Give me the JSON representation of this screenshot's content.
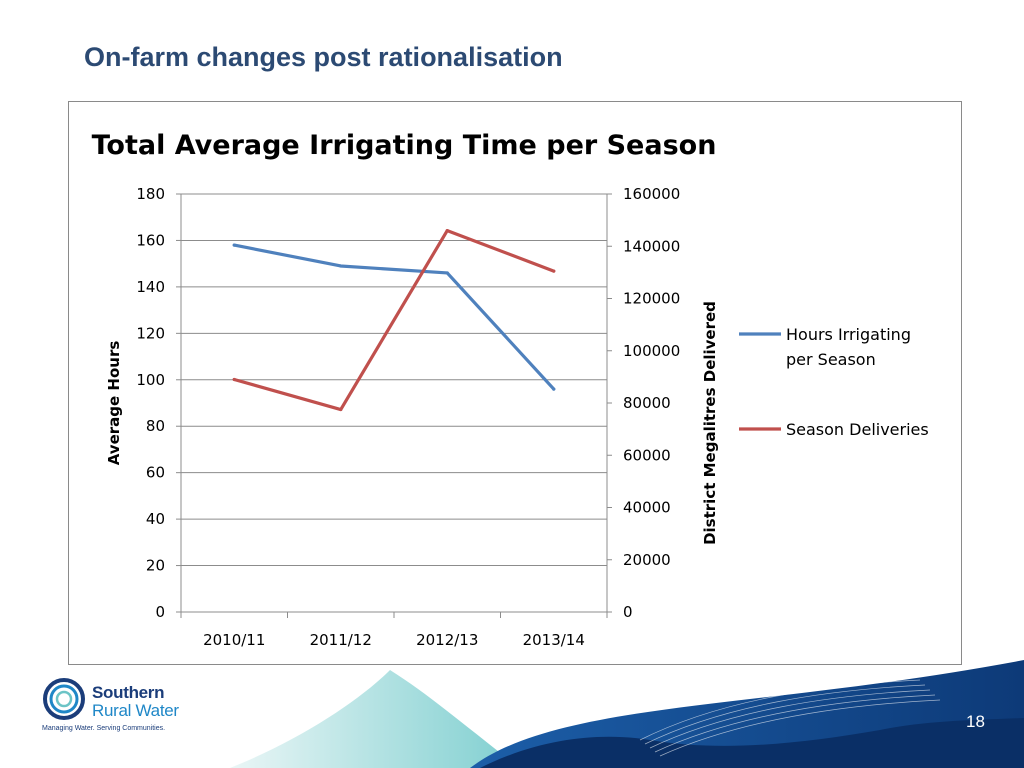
{
  "slide": {
    "title": "On-farm changes post rationalisation",
    "page_number": "18"
  },
  "logo": {
    "name_line1": "Southern",
    "name_line2": "Rural Water",
    "tagline": "Managing Water. Serving Communities."
  },
  "chart_data": {
    "type": "line",
    "title": "Total Average Irrigating Time per Season",
    "categories": [
      "2010/11",
      "2011/12",
      "2012/13",
      "2013/14"
    ],
    "series": [
      {
        "name": "Hours Irrigating per Season",
        "axis": "left",
        "color": "#4f81bd",
        "values": [
          158,
          149,
          146,
          96
        ]
      },
      {
        "name": "Season Deliveries",
        "axis": "right",
        "color": "#c0504d",
        "values": [
          89000,
          77500,
          146000,
          130500
        ]
      }
    ],
    "y_left": {
      "label": "Average Hours",
      "range": [
        0,
        180
      ],
      "ticks": [
        "0",
        "20",
        "40",
        "60",
        "80",
        "100",
        "120",
        "140",
        "160",
        "180"
      ]
    },
    "y_right": {
      "label": "District Megalitres Delivered",
      "range": [
        0,
        160000
      ],
      "ticks": [
        "0",
        "20000",
        "40000",
        "60000",
        "80000",
        "100000",
        "120000",
        "140000",
        "160000"
      ]
    },
    "legend": {
      "position": "right",
      "lines": [
        [
          "Hours Irrigating",
          "per Season"
        ],
        [
          "Season Deliveries"
        ]
      ]
    },
    "grid": true
  },
  "colors": {
    "title_text": "#2c4a73",
    "brand_dark": "#1b3d7a",
    "brand_light": "#1f87c7",
    "series_hours": "#4f81bd",
    "series_deliveries": "#c0504d"
  }
}
